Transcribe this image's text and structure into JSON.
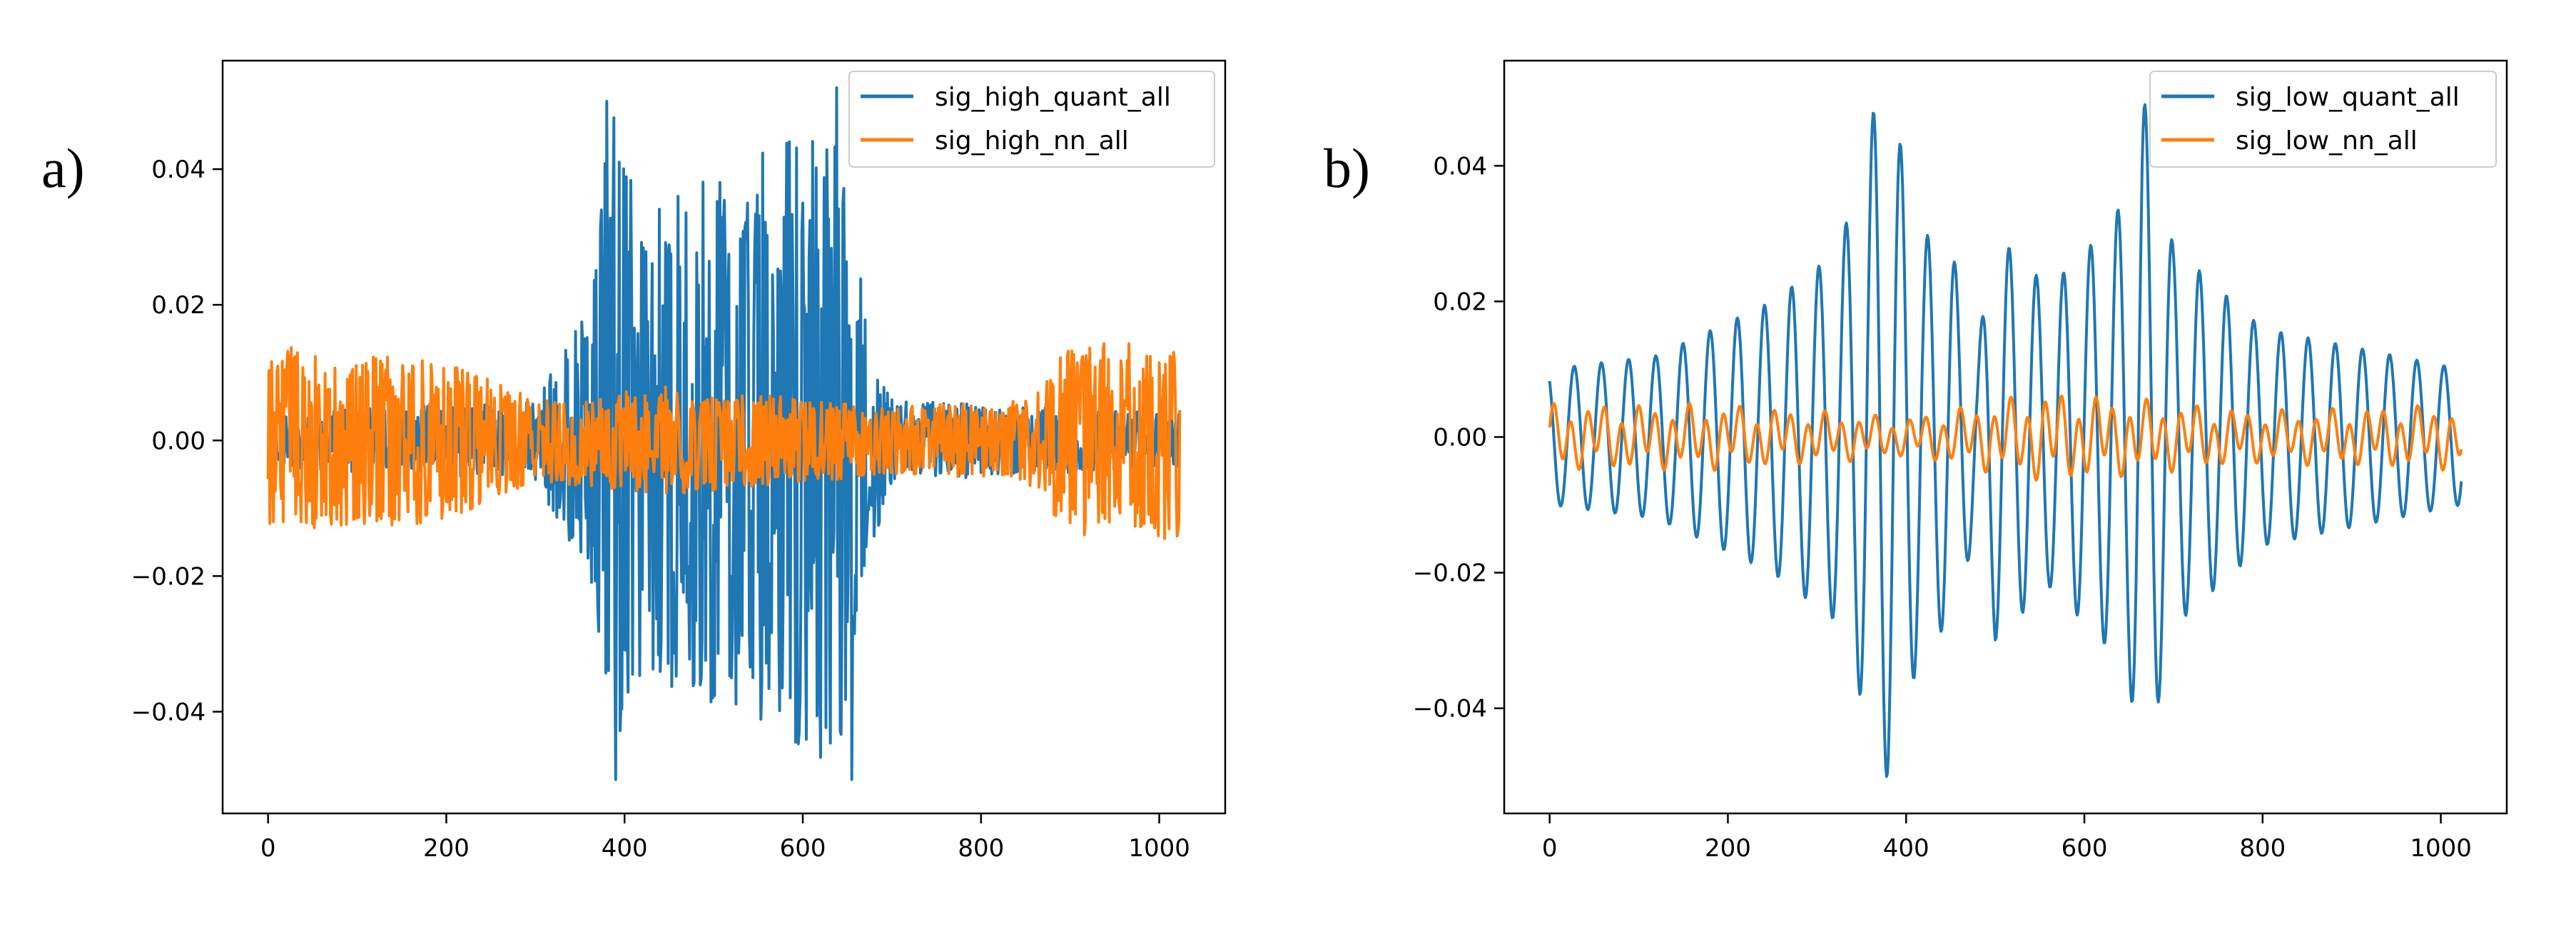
{
  "panels": [
    {
      "label": "a)"
    },
    {
      "label": "b)"
    }
  ],
  "colors": {
    "series1": "#1f77b4",
    "series2": "#ff7f0e",
    "axis": "#000000",
    "legendBorder": "#cccccc"
  },
  "chart_data": [
    {
      "type": "line",
      "panel": "a)",
      "title": "",
      "xlabel": "",
      "ylabel": "",
      "xlim": [
        -51,
        1074
      ],
      "ylim": [
        -0.055,
        0.056
      ],
      "xticks": [
        0,
        200,
        400,
        600,
        800,
        1000
      ],
      "xtick_labels": [
        "0",
        "200",
        "400",
        "600",
        "800",
        "1000"
      ],
      "yticks": [
        -0.04,
        -0.02,
        0.0,
        0.02,
        0.04
      ],
      "ytick_labels": [
        "−0.04",
        "−0.02",
        "0.00",
        "0.02",
        "0.04"
      ],
      "legend": "top-right",
      "grid": false,
      "n_points": 1024,
      "series": [
        {
          "name": "sig_high_quant_all",
          "color": "#1f77b4",
          "envelope": [
            {
              "x": 0,
              "amplitude": 0.004
            },
            {
              "x": 300,
              "amplitude": 0.006
            },
            {
              "x": 360,
              "amplitude": 0.02
            },
            {
              "x": 385,
              "amplitude": 0.05
            },
            {
              "x": 420,
              "amplitude": 0.035
            },
            {
              "x": 520,
              "amplitude": 0.04
            },
            {
              "x": 590,
              "amplitude": 0.045
            },
            {
              "x": 640,
              "amplitude": 0.05
            },
            {
              "x": 670,
              "amplitude": 0.02
            },
            {
              "x": 700,
              "amplitude": 0.006
            },
            {
              "x": 1023,
              "amplitude": 0.004
            }
          ],
          "peaks": [
            {
              "x": 380,
              "y": 0.05
            },
            {
              "x": 390,
              "y": -0.05
            },
            {
              "x": 638,
              "y": 0.052
            },
            {
              "x": 655,
              "y": -0.05
            },
            {
              "x": 460,
              "y": 0.036
            },
            {
              "x": 520,
              "y": -0.035
            },
            {
              "x": 600,
              "y": 0.035
            }
          ]
        },
        {
          "name": "sig_high_nn_all",
          "color": "#ff7f0e",
          "envelope": [
            {
              "x": 0,
              "amplitude": 0.014
            },
            {
              "x": 200,
              "amplitude": 0.012
            },
            {
              "x": 300,
              "amplitude": 0.006
            },
            {
              "x": 450,
              "amplitude": 0.008
            },
            {
              "x": 700,
              "amplitude": 0.005
            },
            {
              "x": 850,
              "amplitude": 0.006
            },
            {
              "x": 900,
              "amplitude": 0.014
            },
            {
              "x": 1023,
              "amplitude": 0.015
            }
          ]
        }
      ]
    },
    {
      "type": "line",
      "panel": "b)",
      "title": "",
      "xlabel": "",
      "ylabel": "",
      "xlim": [
        -51,
        1074
      ],
      "ylim": [
        -0.0555,
        0.0555
      ],
      "xticks": [
        0,
        200,
        400,
        600,
        800,
        1000
      ],
      "xtick_labels": [
        "0",
        "200",
        "400",
        "600",
        "800",
        "1000"
      ],
      "yticks": [
        -0.04,
        -0.02,
        0.0,
        0.02,
        0.04
      ],
      "ytick_labels": [
        "−0.04",
        "−0.02",
        "0.00",
        "0.02",
        "0.04"
      ],
      "legend": "top-right",
      "grid": false,
      "n_points": 1024,
      "series": [
        {
          "name": "sig_low_quant_all",
          "color": "#1f77b4",
          "period": 30.5,
          "envelope": [
            {
              "x": 0,
              "amplitude": 0.01
            },
            {
              "x": 120,
              "amplitude": 0.012
            },
            {
              "x": 250,
              "amplitude": 0.02
            },
            {
              "x": 320,
              "amplitude": 0.027
            },
            {
              "x": 345,
              "amplitude": 0.036
            },
            {
              "x": 368,
              "amplitude": 0.051
            },
            {
              "x": 380,
              "amplitude": 0.05
            },
            {
              "x": 420,
              "amplitude": 0.03
            },
            {
              "x": 450,
              "amplitude": 0.028
            },
            {
              "x": 480,
              "amplitude": 0.013
            },
            {
              "x": 500,
              "amplitude": 0.03
            },
            {
              "x": 560,
              "amplitude": 0.022
            },
            {
              "x": 620,
              "amplitude": 0.03
            },
            {
              "x": 650,
              "amplitude": 0.036
            },
            {
              "x": 665,
              "amplitude": 0.051
            },
            {
              "x": 700,
              "amplitude": 0.028
            },
            {
              "x": 800,
              "amplitude": 0.016
            },
            {
              "x": 1023,
              "amplitude": 0.01
            }
          ]
        },
        {
          "name": "sig_low_nn_all",
          "color": "#ff7f0e",
          "period": 19,
          "envelope": [
            {
              "x": 0,
              "amplitude": 0.005
            },
            {
              "x": 200,
              "amplitude": 0.005
            },
            {
              "x": 400,
              "amplitude": 0.003
            },
            {
              "x": 560,
              "amplitude": 0.007
            },
            {
              "x": 800,
              "amplitude": 0.004
            },
            {
              "x": 1023,
              "amplitude": 0.005
            }
          ]
        }
      ]
    }
  ]
}
